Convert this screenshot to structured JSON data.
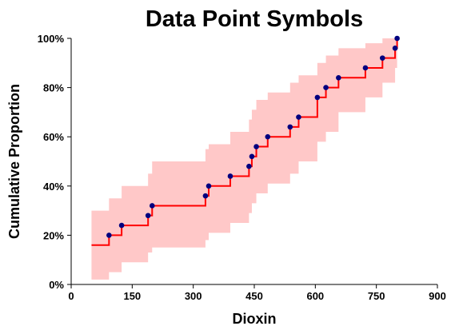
{
  "chart_data": {
    "type": "line",
    "subtype": "step-ecdf-with-confidence-band",
    "title": "Data Point Symbols",
    "xlabel": "Dioxin",
    "ylabel": "Cumulative Proportion",
    "xlim": [
      0,
      900
    ],
    "ylim": [
      0,
      1
    ],
    "x_ticks": [
      0,
      150,
      300,
      450,
      600,
      750,
      900
    ],
    "x_tick_labels": [
      "0",
      "150",
      "300",
      "450",
      "600",
      "750",
      "900"
    ],
    "y_ticks": [
      0,
      0.2,
      0.4,
      0.6,
      0.8,
      1.0
    ],
    "y_tick_labels": [
      "0%",
      "20%",
      "40%",
      "60%",
      "80%",
      "100%"
    ],
    "grid": false,
    "legend": "none",
    "step_start": {
      "x": 50,
      "y": 0.16
    },
    "points": [
      {
        "x": 93,
        "y": 0.2
      },
      {
        "x": 124,
        "y": 0.24
      },
      {
        "x": 189,
        "y": 0.28
      },
      {
        "x": 199,
        "y": 0.32
      },
      {
        "x": 330,
        "y": 0.36
      },
      {
        "x": 338,
        "y": 0.4
      },
      {
        "x": 391,
        "y": 0.44
      },
      {
        "x": 437,
        "y": 0.48
      },
      {
        "x": 444,
        "y": 0.52
      },
      {
        "x": 455,
        "y": 0.56
      },
      {
        "x": 483,
        "y": 0.6
      },
      {
        "x": 538,
        "y": 0.64
      },
      {
        "x": 559,
        "y": 0.68
      },
      {
        "x": 605,
        "y": 0.76
      },
      {
        "x": 626,
        "y": 0.8
      },
      {
        "x": 657,
        "y": 0.84
      },
      {
        "x": 723,
        "y": 0.88
      },
      {
        "x": 765,
        "y": 0.92
      },
      {
        "x": 796,
        "y": 0.96
      },
      {
        "x": 801,
        "y": 1.0
      }
    ],
    "band_upper": [
      {
        "x": 50,
        "y": 0.3
      },
      {
        "x": 93,
        "y": 0.35
      },
      {
        "x": 124,
        "y": 0.4
      },
      {
        "x": 189,
        "y": 0.45
      },
      {
        "x": 199,
        "y": 0.5
      },
      {
        "x": 330,
        "y": 0.55
      },
      {
        "x": 338,
        "y": 0.57
      },
      {
        "x": 391,
        "y": 0.62
      },
      {
        "x": 437,
        "y": 0.67
      },
      {
        "x": 444,
        "y": 0.71
      },
      {
        "x": 455,
        "y": 0.75
      },
      {
        "x": 483,
        "y": 0.78
      },
      {
        "x": 538,
        "y": 0.82
      },
      {
        "x": 559,
        "y": 0.85
      },
      {
        "x": 605,
        "y": 0.9
      },
      {
        "x": 626,
        "y": 0.93
      },
      {
        "x": 657,
        "y": 0.96
      },
      {
        "x": 723,
        "y": 0.98
      },
      {
        "x": 765,
        "y": 1.0
      },
      {
        "x": 801,
        "y": 1.0
      }
    ],
    "band_lower": [
      {
        "x": 50,
        "y": 0.02
      },
      {
        "x": 93,
        "y": 0.05
      },
      {
        "x": 124,
        "y": 0.09
      },
      {
        "x": 189,
        "y": 0.13
      },
      {
        "x": 199,
        "y": 0.15
      },
      {
        "x": 330,
        "y": 0.18
      },
      {
        "x": 338,
        "y": 0.21
      },
      {
        "x": 391,
        "y": 0.25
      },
      {
        "x": 437,
        "y": 0.29
      },
      {
        "x": 444,
        "y": 0.33
      },
      {
        "x": 455,
        "y": 0.37
      },
      {
        "x": 483,
        "y": 0.41
      },
      {
        "x": 538,
        "y": 0.45
      },
      {
        "x": 559,
        "y": 0.5
      },
      {
        "x": 605,
        "y": 0.58
      },
      {
        "x": 626,
        "y": 0.62
      },
      {
        "x": 657,
        "y": 0.7
      },
      {
        "x": 723,
        "y": 0.76
      },
      {
        "x": 765,
        "y": 0.82
      },
      {
        "x": 796,
        "y": 0.88
      },
      {
        "x": 801,
        "y": 0.88
      }
    ],
    "colors": {
      "band": "#ffc8c8",
      "step_line": "#ff0000",
      "points": "#00007f",
      "axes": "#000000"
    }
  }
}
